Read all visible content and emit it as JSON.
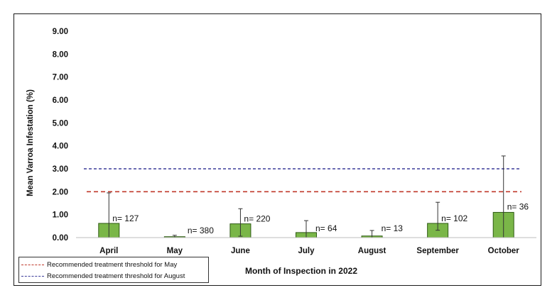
{
  "chart_data": {
    "type": "bar",
    "categories": [
      "April",
      "May",
      "June",
      "July",
      "August",
      "September",
      "October"
    ],
    "values": [
      0.62,
      0.04,
      0.6,
      0.22,
      0.07,
      0.62,
      1.1
    ],
    "error_upper": [
      1.33,
      0.06,
      0.66,
      0.52,
      0.24,
      0.92,
      2.46
    ],
    "error_lower": [
      0.62,
      0.04,
      0.54,
      0.22,
      0.07,
      0.3,
      1.1
    ],
    "sample_labels": [
      "n= 127",
      "n= 380",
      "n= 220",
      "n= 64",
      "n= 13",
      "n= 102",
      "n= 36"
    ],
    "xlabel": "Month of Inspection in 2022",
    "ylabel": "Mean Varroa Infestation (%)",
    "ylim": [
      0,
      9
    ],
    "yticks": [
      "0.00",
      "1.00",
      "2.00",
      "3.00",
      "4.00",
      "5.00",
      "6.00",
      "7.00",
      "8.00",
      "9.00"
    ],
    "bar_color": "#7ab648",
    "bar_edge_color": "#2e5a14",
    "thresholds": [
      {
        "name": "Recommended treatment threshold for May",
        "value": 2.0,
        "color": "#c0392b"
      },
      {
        "name": "Recommended treatment threshold for August",
        "value": 3.0,
        "color": "#3b3b9a"
      }
    ],
    "grid": false,
    "legend_placement": "bottom-left"
  }
}
